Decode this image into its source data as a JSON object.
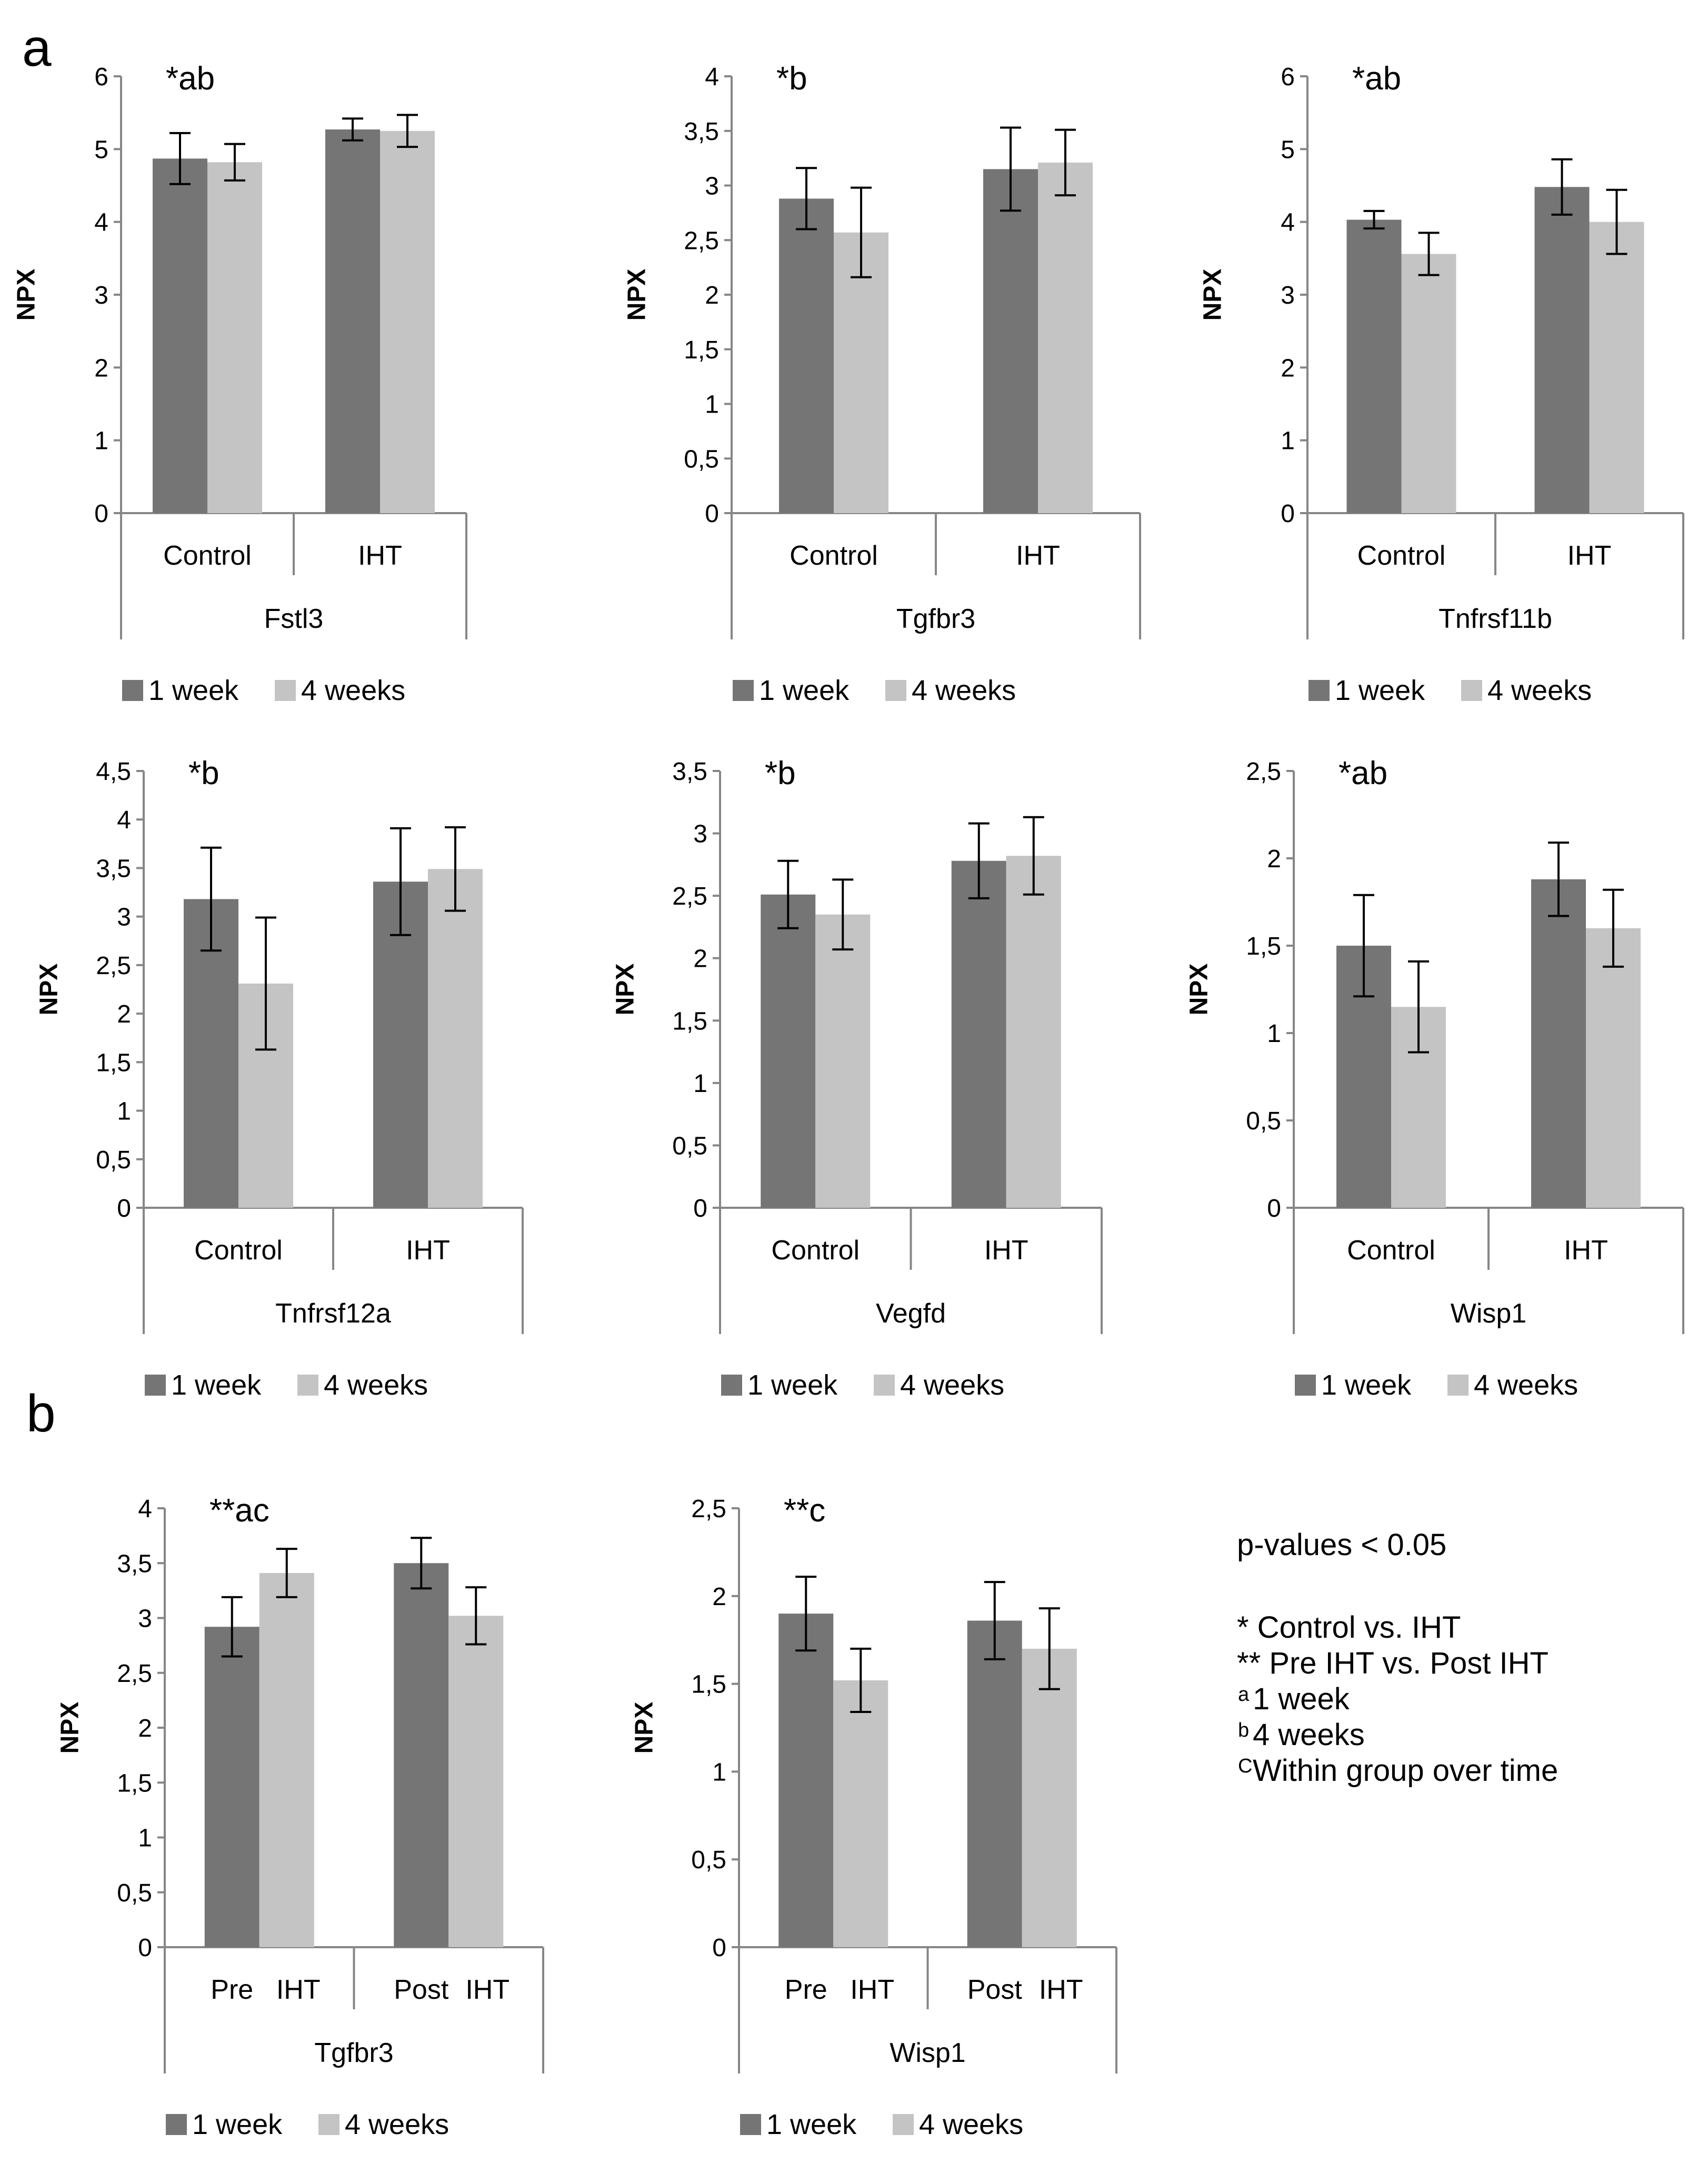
{
  "panel_labels": {
    "a": "a",
    "b": "b"
  },
  "colors": {
    "week1": "#757575",
    "week4": "#c4c4c4",
    "axis": "#868686",
    "text": "#000000"
  },
  "legend": {
    "week1": "1 week",
    "week4": "4 weeks"
  },
  "notes": {
    "pvalue": "p-values < 0.05",
    "line1": "* Control vs. IHT",
    "line2": "** Pre IHT vs. Post IHT",
    "line3_sup": "a",
    "line3": "1 week",
    "line4_sup": "b",
    "line4": "4 weeks",
    "line5_sup": "C",
    "line5": "Within group over time"
  },
  "chart_data": [
    {
      "type": "bar",
      "panel": "a",
      "title": "Fstl3",
      "annotation": "*ab",
      "ylabel": "NPX",
      "ylim": [
        0,
        6
      ],
      "yticks": [
        0,
        1,
        2,
        3,
        4,
        5,
        6
      ],
      "ytick_labels": [
        "0",
        "1",
        "2",
        "3",
        "4",
        "5",
        "6"
      ],
      "categories": [
        [
          "Control"
        ],
        [
          "IHT"
        ]
      ],
      "series": [
        {
          "name": "1 week",
          "values": [
            4.87,
            5.27
          ],
          "errors": [
            0.35,
            0.15
          ]
        },
        {
          "name": "4 weeks",
          "values": [
            4.82,
            5.25
          ],
          "errors": [
            0.25,
            0.22
          ]
        }
      ]
    },
    {
      "type": "bar",
      "panel": "a",
      "title": "Tgfbr3",
      "annotation": "*b",
      "ylabel": "NPX",
      "ylim": [
        0,
        4
      ],
      "yticks": [
        0,
        0.5,
        1,
        1.5,
        2,
        2.5,
        3,
        3.5,
        4
      ],
      "ytick_labels": [
        "0",
        "0,5",
        "1",
        "1,5",
        "2",
        "2,5",
        "3",
        "3,5",
        "4"
      ],
      "categories": [
        [
          "Control"
        ],
        [
          "IHT"
        ]
      ],
      "series": [
        {
          "name": "1 week",
          "values": [
            2.88,
            3.15
          ],
          "errors": [
            0.28,
            0.38
          ]
        },
        {
          "name": "4 weeks",
          "values": [
            2.57,
            3.21
          ],
          "errors": [
            0.41,
            0.3
          ]
        }
      ]
    },
    {
      "type": "bar",
      "panel": "a",
      "title": "Tnfrsf11b",
      "annotation": "*ab",
      "ylabel": "NPX",
      "ylim": [
        0,
        6
      ],
      "yticks": [
        0,
        1,
        2,
        3,
        4,
        5,
        6
      ],
      "ytick_labels": [
        "0",
        "1",
        "2",
        "3",
        "4",
        "5",
        "6"
      ],
      "categories": [
        [
          "Control"
        ],
        [
          "IHT"
        ]
      ],
      "series": [
        {
          "name": "1 week",
          "values": [
            4.03,
            4.48
          ],
          "errors": [
            0.12,
            0.38
          ]
        },
        {
          "name": "4 weeks",
          "values": [
            3.56,
            4.0
          ],
          "errors": [
            0.29,
            0.44
          ]
        }
      ]
    },
    {
      "type": "bar",
      "panel": "a",
      "title": "Tnfrsf12a",
      "annotation": "*b",
      "ylabel": "NPX",
      "ylim": [
        0,
        4.5
      ],
      "yticks": [
        0,
        0.5,
        1,
        1.5,
        2,
        2.5,
        3,
        3.5,
        4,
        4.5
      ],
      "ytick_labels": [
        "0",
        "0,5",
        "1",
        "1,5",
        "2",
        "2,5",
        "3",
        "3,5",
        "4",
        "4,5"
      ],
      "categories": [
        [
          "Control"
        ],
        [
          "IHT"
        ]
      ],
      "series": [
        {
          "name": "1 week",
          "values": [
            3.18,
            3.36
          ],
          "errors": [
            0.53,
            0.55
          ]
        },
        {
          "name": "4 weeks",
          "values": [
            2.31,
            3.49
          ],
          "errors": [
            0.68,
            0.43
          ]
        }
      ]
    },
    {
      "type": "bar",
      "panel": "a",
      "title": "Vegfd",
      "annotation": "*b",
      "ylabel": "NPX",
      "ylim": [
        0,
        3.5
      ],
      "yticks": [
        0,
        0.5,
        1,
        1.5,
        2,
        2.5,
        3,
        3.5
      ],
      "ytick_labels": [
        "0",
        "0,5",
        "1",
        "1,5",
        "2",
        "2,5",
        "3",
        "3,5"
      ],
      "categories": [
        [
          "Control"
        ],
        [
          "IHT"
        ]
      ],
      "series": [
        {
          "name": "1 week",
          "values": [
            2.51,
            2.78
          ],
          "errors": [
            0.27,
            0.3
          ]
        },
        {
          "name": "4 weeks",
          "values": [
            2.35,
            2.82
          ],
          "errors": [
            0.28,
            0.31
          ]
        }
      ]
    },
    {
      "type": "bar",
      "panel": "a",
      "title": "Wisp1",
      "annotation": "*ab",
      "ylabel": "NPX",
      "ylim": [
        0,
        2.5
      ],
      "yticks": [
        0,
        0.5,
        1,
        1.5,
        2,
        2.5
      ],
      "ytick_labels": [
        "0",
        "0,5",
        "1",
        "1,5",
        "2",
        "2,5"
      ],
      "categories": [
        [
          "Control"
        ],
        [
          "IHT"
        ]
      ],
      "series": [
        {
          "name": "1 week",
          "values": [
            1.5,
            1.88
          ],
          "errors": [
            0.29,
            0.21
          ]
        },
        {
          "name": "4 weeks",
          "values": [
            1.15,
            1.6
          ],
          "errors": [
            0.26,
            0.22
          ]
        }
      ]
    },
    {
      "type": "bar",
      "panel": "b",
      "title": "Tgfbr3",
      "annotation": "**ac",
      "ylabel": "NPX",
      "ylim": [
        0,
        4
      ],
      "yticks": [
        0,
        0.5,
        1,
        1.5,
        2,
        2.5,
        3,
        3.5,
        4
      ],
      "ytick_labels": [
        "0",
        "0,5",
        "1",
        "1,5",
        "2",
        "2,5",
        "3",
        "3,5",
        "4"
      ],
      "categories": [
        [
          "Pre",
          "IHT"
        ],
        [
          "Post",
          "IHT"
        ]
      ],
      "series": [
        {
          "name": "1 week",
          "values": [
            2.92,
            3.5
          ],
          "errors": [
            0.27,
            0.23
          ]
        },
        {
          "name": "4 weeks",
          "values": [
            3.41,
            3.02
          ],
          "errors": [
            0.22,
            0.26
          ]
        }
      ]
    },
    {
      "type": "bar",
      "panel": "b",
      "title": "Wisp1",
      "annotation": "**c",
      "ylabel": "NPX",
      "ylim": [
        0,
        2.5
      ],
      "yticks": [
        0,
        0.5,
        1,
        1.5,
        2,
        2.5
      ],
      "ytick_labels": [
        "0",
        "0,5",
        "1",
        "1,5",
        "2",
        "2,5"
      ],
      "categories": [
        [
          "Pre",
          "IHT"
        ],
        [
          "Post",
          "IHT"
        ]
      ],
      "series": [
        {
          "name": "1 week",
          "values": [
            1.9,
            1.86
          ],
          "errors": [
            0.21,
            0.22
          ]
        },
        {
          "name": "4 weeks",
          "values": [
            1.52,
            1.7
          ],
          "errors": [
            0.18,
            0.23
          ]
        }
      ]
    }
  ]
}
